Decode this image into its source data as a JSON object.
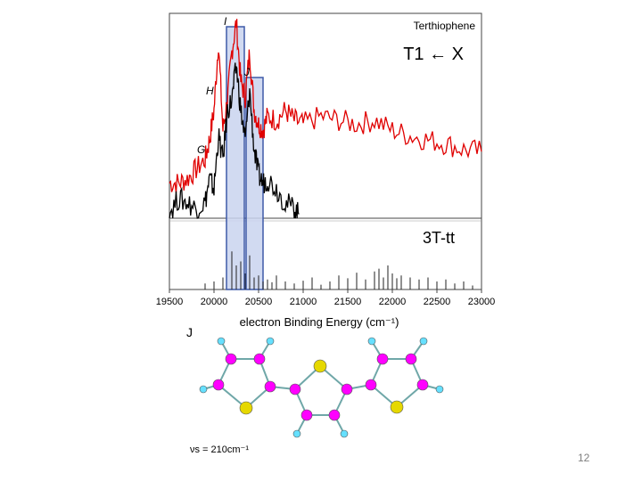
{
  "slide": {
    "j_label": "J",
    "mode_label": "νs = 210cm⁻¹",
    "page_number": "12"
  },
  "chart_data": {
    "type": "line",
    "title": "Terthiophene",
    "transition": "T1 ← X",
    "xlabel": "electron Binding Energy (cm⁻¹)",
    "xlim": [
      19500,
      23000
    ],
    "x_ticks": [
      19500,
      20000,
      20500,
      21000,
      21500,
      22000,
      22500,
      23000
    ],
    "peak_labels": [
      {
        "text": "G",
        "x": 19950
      },
      {
        "text": "H",
        "x": 20050
      },
      {
        "text": "I",
        "x": 20250
      },
      {
        "text": "J",
        "x": 20480
      }
    ],
    "highlight_bands": [
      {
        "label": "I",
        "from": 20140,
        "to": 20340
      },
      {
        "label": "J",
        "from": 20360,
        "to": 20550
      }
    ],
    "series": [
      {
        "color": "#e00000",
        "x": [
          19500,
          19600,
          19700,
          19800,
          19900,
          19950,
          20000,
          20050,
          20100,
          20150,
          20200,
          20250,
          20300,
          20350,
          20400,
          20450,
          20500,
          20550,
          20600,
          20700,
          20800,
          20900,
          21000,
          21200,
          21400,
          21600,
          21800,
          22000,
          22200,
          22400,
          22600,
          22800,
          23000
        ],
        "y": [
          0.18,
          0.18,
          0.2,
          0.25,
          0.3,
          0.4,
          0.55,
          0.9,
          0.45,
          0.6,
          0.85,
          1.0,
          0.7,
          0.62,
          0.85,
          0.55,
          0.48,
          0.45,
          0.52,
          0.5,
          0.55,
          0.5,
          0.48,
          0.52,
          0.5,
          0.48,
          0.5,
          0.45,
          0.42,
          0.4,
          0.38,
          0.35,
          0.34
        ]
      },
      {
        "color": "#000000",
        "x": [
          19500,
          19600,
          19700,
          19800,
          19900,
          19950,
          20000,
          20050,
          20100,
          20150,
          20200,
          20250,
          20300,
          20350,
          20400,
          20450,
          20500,
          20550,
          20600,
          20700,
          20800,
          20900,
          20950
        ],
        "y": [
          0.03,
          0.1,
          0.08,
          0.05,
          0.08,
          0.2,
          0.15,
          0.42,
          0.3,
          0.55,
          0.6,
          0.78,
          0.55,
          0.4,
          0.65,
          0.35,
          0.22,
          0.18,
          0.2,
          0.15,
          0.08,
          0.05,
          0.02
        ]
      }
    ],
    "stick_spectrum": {
      "label": "3T-tt",
      "x": [
        19900,
        20000,
        20100,
        20200,
        20250,
        20300,
        20350,
        20400,
        20450,
        20500,
        20550,
        20600,
        20650,
        20700,
        20800,
        20900,
        21000,
        21100,
        21200,
        21300,
        21400,
        21500,
        21600,
        21700,
        21800,
        21850,
        21900,
        21950,
        22000,
        22050,
        22100,
        22200,
        22300,
        22400,
        22500,
        22600,
        22700,
        22800,
        22900
      ],
      "y": [
        0.15,
        0.2,
        0.3,
        0.95,
        0.6,
        0.7,
        0.4,
        0.85,
        0.3,
        0.35,
        0.2,
        0.25,
        0.18,
        0.35,
        0.2,
        0.15,
        0.22,
        0.3,
        0.12,
        0.2,
        0.35,
        0.28,
        0.42,
        0.25,
        0.45,
        0.52,
        0.3,
        0.6,
        0.4,
        0.28,
        0.35,
        0.3,
        0.25,
        0.3,
        0.2,
        0.25,
        0.15,
        0.2,
        0.1
      ]
    }
  },
  "molecule": {
    "atom_colors": {
      "sulfur": "#e6d800",
      "carbon": "#ff00ff",
      "hydrogen": "#66e0ff",
      "bond": "#6fa7a8"
    }
  }
}
